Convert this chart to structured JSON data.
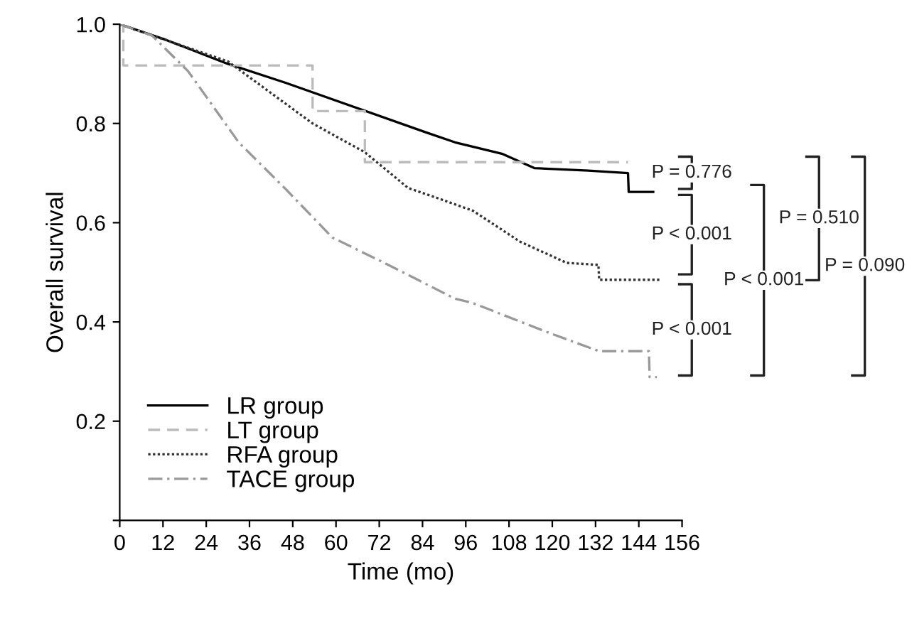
{
  "chart_data": {
    "type": "step",
    "xlabel": "Time (mo)",
    "ylabel": "Overall survival",
    "xlim": [
      0,
      156
    ],
    "xticks": [
      0,
      12,
      24,
      36,
      48,
      60,
      72,
      84,
      96,
      108,
      120,
      132,
      144,
      156
    ],
    "ylim": [
      0,
      1.0
    ],
    "yticks": [
      {
        "value": 0,
        "label": null
      },
      {
        "value": 0.2,
        "label": "0.2"
      },
      {
        "value": 0.4,
        "label": "0.4"
      },
      {
        "value": 0.6,
        "label": "0.6"
      },
      {
        "value": 0.8,
        "label": "0.8"
      },
      {
        "value": 1.0,
        "label": "1.0"
      }
    ],
    "grid": false,
    "legend": "bottom left",
    "series": [
      {
        "name": "LR group",
        "type": "line",
        "color": "#000000",
        "line_style": "solid",
        "x": [
          0,
          13,
          30,
          46,
          85,
          93,
          106,
          115,
          130,
          141,
          141.2,
          148
        ],
        "values": [
          1.0,
          0.968,
          0.92,
          0.882,
          0.782,
          0.762,
          0.739,
          0.71,
          0.705,
          0.7,
          0.662,
          0.662
        ]
      },
      {
        "name": "LT group",
        "color": "#bbbbbb",
        "line_style": "dashed",
        "x": [
          0,
          1,
          53.5,
          68,
          141
        ],
        "values": [
          1.0,
          0.917,
          0.825,
          0.722,
          0.722
        ]
      },
      {
        "name": "RFA group",
        "type": "line",
        "color": "#333333",
        "line_style": "dotted",
        "x": [
          0,
          30,
          53.5,
          68,
          80,
          88,
          98,
          111,
          124,
          132.8,
          133,
          150
        ],
        "values": [
          1.0,
          0.925,
          0.8,
          0.742,
          0.67,
          0.65,
          0.624,
          0.562,
          0.519,
          0.515,
          0.485,
          0.485
        ]
      },
      {
        "name": "TACE group",
        "type": "line",
        "color": "#999999",
        "line_style": "dashdot",
        "x": [
          0,
          9,
          19,
          33,
          46,
          59,
          72,
          93,
          98,
          118,
          133,
          146.8,
          147,
          149
        ],
        "values": [
          1.0,
          0.977,
          0.905,
          0.762,
          0.668,
          0.57,
          0.524,
          0.447,
          0.438,
          0.381,
          0.341,
          0.341,
          0.289,
          0.289
        ]
      }
    ],
    "annotations": [
      "P = 0.776",
      "P < 0.001",
      "P < 0.001",
      "P < 0.001",
      "P = 0.510",
      "P = 0.090"
    ]
  }
}
